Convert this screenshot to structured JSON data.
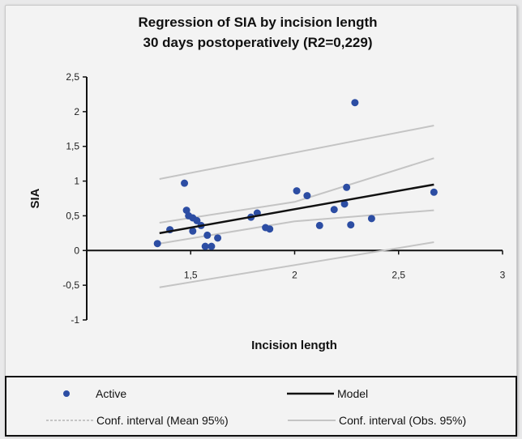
{
  "chart_data": {
    "type": "scatter",
    "title": "Regression of SIA by incision length",
    "subtitle": "30 days postoperatively (R2=0,229)",
    "xlabel": "Incision length",
    "ylabel": "SIA",
    "xlim": [
      1,
      3
    ],
    "ylim": [
      -1,
      2.5
    ],
    "x_ticks": [
      1.5,
      2,
      2.5,
      3
    ],
    "x_tick_labels": [
      "1,5",
      "2",
      "2,5",
      "3"
    ],
    "y_ticks": [
      -1,
      -0.5,
      0,
      0.5,
      1,
      1.5,
      2,
      2.5
    ],
    "y_tick_labels": [
      "-1",
      "-0,5",
      "0",
      "0,5",
      "1",
      "1,5",
      "2",
      "2,5"
    ],
    "grid": false,
    "points": [
      {
        "x": 1.34,
        "y": 0.1
      },
      {
        "x": 1.4,
        "y": 0.3
      },
      {
        "x": 1.47,
        "y": 0.97
      },
      {
        "x": 1.48,
        "y": 0.58
      },
      {
        "x": 1.49,
        "y": 0.5
      },
      {
        "x": 1.51,
        "y": 0.47
      },
      {
        "x": 1.51,
        "y": 0.28
      },
      {
        "x": 1.53,
        "y": 0.43
      },
      {
        "x": 1.55,
        "y": 0.36
      },
      {
        "x": 1.57,
        "y": 0.06
      },
      {
        "x": 1.58,
        "y": 0.22
      },
      {
        "x": 1.6,
        "y": 0.06
      },
      {
        "x": 1.63,
        "y": 0.18
      },
      {
        "x": 1.79,
        "y": 0.48
      },
      {
        "x": 1.82,
        "y": 0.54
      },
      {
        "x": 1.86,
        "y": 0.33
      },
      {
        "x": 1.88,
        "y": 0.31
      },
      {
        "x": 2.01,
        "y": 0.86
      },
      {
        "x": 2.06,
        "y": 0.79
      },
      {
        "x": 2.12,
        "y": 0.36
      },
      {
        "x": 2.19,
        "y": 0.59
      },
      {
        "x": 2.24,
        "y": 0.67
      },
      {
        "x": 2.25,
        "y": 0.91
      },
      {
        "x": 2.27,
        "y": 0.37
      },
      {
        "x": 2.29,
        "y": 2.13
      },
      {
        "x": 2.37,
        "y": 0.46
      },
      {
        "x": 2.67,
        "y": 0.84
      }
    ],
    "model_line": {
      "x": [
        1.35,
        2.67
      ],
      "y": [
        0.25,
        0.95
      ]
    },
    "conf_mean_upper": {
      "x": [
        1.35,
        2.0,
        2.67
      ],
      "y": [
        0.4,
        0.7,
        1.33
      ]
    },
    "conf_mean_lower": {
      "x": [
        1.35,
        2.0,
        2.67
      ],
      "y": [
        0.1,
        0.42,
        0.58
      ]
    },
    "conf_obs_upper": {
      "x": [
        1.35,
        2.67
      ],
      "y": [
        1.03,
        1.8
      ]
    },
    "conf_obs_lower": {
      "x": [
        1.35,
        2.67
      ],
      "y": [
        -0.53,
        0.12
      ]
    },
    "colors": {
      "points": "#2c4da3",
      "model": "#111111",
      "conf_mean": "#c4c4c4",
      "conf_obs": "#c4c4c4"
    },
    "legend": {
      "placement": "bottom",
      "entries": [
        {
          "label": "Active",
          "kind": "marker"
        },
        {
          "label": "Model",
          "kind": "line"
        },
        {
          "label": "Conf. interval (Mean 95%)",
          "kind": "dashed"
        },
        {
          "label": "Conf. interval (Obs. 95%)",
          "kind": "line-gray"
        }
      ]
    }
  }
}
